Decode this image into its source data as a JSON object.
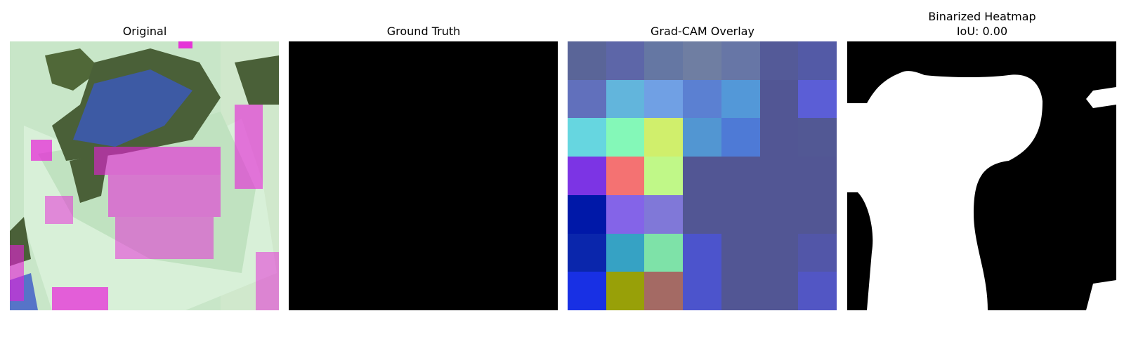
{
  "panels": [
    {
      "title": "Original"
    },
    {
      "title": "Ground Truth"
    },
    {
      "title": "Grad-CAM Overlay"
    },
    {
      "title": "Binarized Heatmap",
      "subtitle": "IoU: 0.00"
    }
  ],
  "colors": {
    "ground_truth": "#000000",
    "mask_foreground": "#ffffff",
    "mask_background": "#000000",
    "gradcam_cells": [
      [
        "#5a6598",
        "#5d66a8",
        "#6577a3",
        "#6f7ea2",
        "#6776a6",
        "#545a98",
        "#535aa6"
      ],
      [
        "#6170bc",
        "#62b5dc",
        "#70a0e4",
        "#5b80d2",
        "#5398d8",
        "#525694",
        "#5b5ed6"
      ],
      [
        "#66d6e0",
        "#84f8b8",
        "#d0ef6c",
        "#5296d2",
        "#4e7ad6",
        "#525694",
        "#525894"
      ],
      [
        "#7c34e4",
        "#f47272",
        "#c0f888",
        "#525694",
        "#525694",
        "#525694",
        "#525694"
      ],
      [
        "#0018a8",
        "#8464e8",
        "#8078d8",
        "#525694",
        "#525694",
        "#525694",
        "#525694"
      ],
      [
        "#0a26ac",
        "#36a2c4",
        "#7ee2a8",
        "#4c54cc",
        "#525694",
        "#525694",
        "#5256a8"
      ],
      [
        "#1830e4",
        "#98a008",
        "#a46a64",
        "#4c54cc",
        "#525694",
        "#525694",
        "#5256c4"
      ]
    ]
  }
}
